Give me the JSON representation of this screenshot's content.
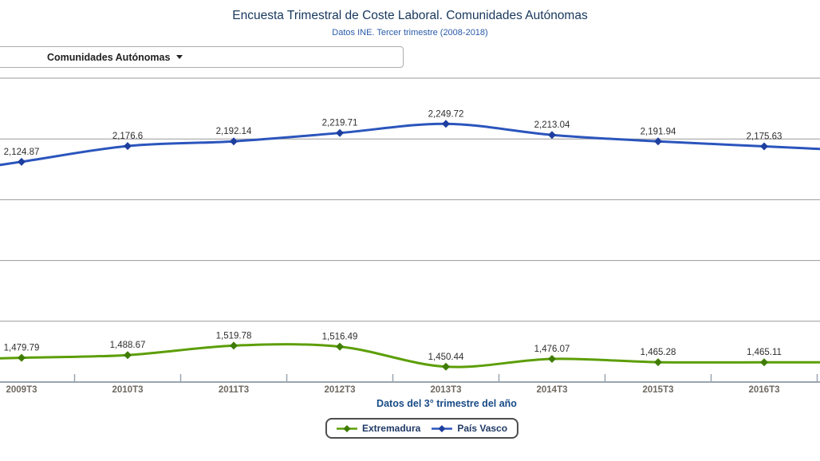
{
  "header": {
    "title": "Encuesta Trimestral de Coste Laboral. Comunidades Autónomas",
    "subtitle": "Datos INE. Tercer trimestre (2008-2018)"
  },
  "controls": {
    "dropdown_label": "Comunidades Autónomas"
  },
  "chart_data": {
    "type": "line",
    "title": "Encuesta Trimestral de Coste Laboral. Comunidades Autónomas",
    "subtitle": "Datos INE. Tercer trimestre (2008-2018)",
    "categories": [
      "2009T3",
      "2010T3",
      "2011T3",
      "2012T3",
      "2013T3",
      "2014T3",
      "2015T3",
      "2016T3"
    ],
    "xlabel": "Datos del 3° trimestre del año",
    "ylim": [
      1400,
      2400
    ],
    "grid_step": 200,
    "grid": true,
    "legend_position": "bottom",
    "series": [
      {
        "name": "Extremadura",
        "color": "#5c9e07",
        "marker_color": "#3f7d04",
        "values": [
          1479.79,
          1488.67,
          1519.78,
          1516.49,
          1450.44,
          1476.07,
          1465.28,
          1465.11
        ],
        "labels": [
          "1,479.79",
          "1,488.67",
          "1,519.78",
          "1,516.49",
          "1,450.44",
          "1,476.07",
          "1,465.28",
          "1,465.11"
        ]
      },
      {
        "name": "País Vasco",
        "color": "#2b55bd",
        "marker_color": "#1e3f9f",
        "values": [
          2124.87,
          2176.6,
          2192.14,
          2219.71,
          2249.72,
          2213.04,
          2191.94,
          2175.63
        ],
        "labels": [
          "2,124.87",
          "2,176.6",
          "2,192.14",
          "2,219.71",
          "2,249.72",
          "2,213.04",
          "2,191.94",
          "2,175.63"
        ]
      }
    ]
  },
  "colors": {
    "title": "#17375c",
    "subtitle": "#2a5aa8",
    "xlabel_title": "#174a86",
    "axis_labels": "#6e6960",
    "point_labels": "#2e2e2e",
    "gridline": "#999999",
    "axis_line": "#9aa5b0",
    "legend_text": "#1f3a66",
    "extremadura": "#5c9e07",
    "pais_vasco": "#2b55bd"
  }
}
